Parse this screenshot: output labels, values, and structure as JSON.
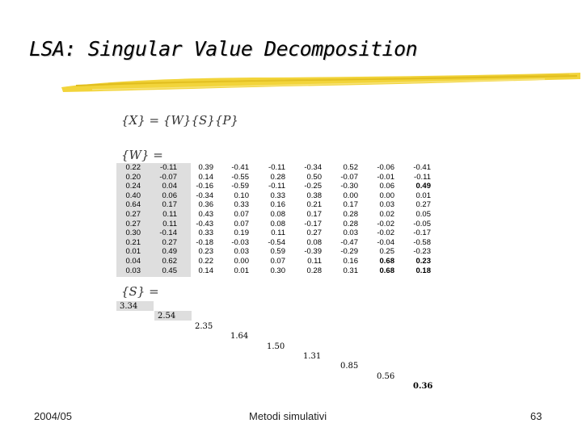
{
  "slide": {
    "title": "LSA: Singular Value Decomposition",
    "footer_left": "2004/05",
    "footer_center": "Metodi simulativi",
    "footer_right": "63",
    "accent_color": "#f2d43a"
  },
  "equation": {
    "lhs": "{X}",
    "eq": "=",
    "rhs": "{W}{S}{P}"
  },
  "w_label": "{W} =",
  "s_label": "{S} =",
  "w_matrix": [
    [
      "0.22",
      "-0.11",
      "0.39",
      "-0.41",
      "-0.11",
      "-0.34",
      "0.52",
      "-0.06",
      "-0.41"
    ],
    [
      "0.20",
      "-0.07",
      "0.14",
      "-0.55",
      "0.28",
      "0.50",
      "-0.07",
      "-0.01",
      "-0.11"
    ],
    [
      "0.24",
      "0.04",
      "-0.16",
      "-0.59",
      "-0.11",
      "-0.25",
      "-0.30",
      "0.06",
      "0.49"
    ],
    [
      "0.40",
      "0.06",
      "-0.34",
      "0.10",
      "0.33",
      "0.38",
      "0.00",
      "0.00",
      "0.01"
    ],
    [
      "0.64",
      "0.17",
      "0.36",
      "0.33",
      "0.16",
      "0.21",
      "0.17",
      "0.03",
      "0.27"
    ],
    [
      "0.27",
      "0.11",
      "0.43",
      "0.07",
      "0.08",
      "0.17",
      "0.28",
      "0.02",
      "0.05"
    ],
    [
      "0.27",
      "0.11",
      "-0.43",
      "0.07",
      "0.08",
      "-0.17",
      "0.28",
      "-0.02",
      "-0.05"
    ],
    [
      "0.30",
      "-0.14",
      "0.33",
      "0.19",
      "0.11",
      "0.27",
      "0.03",
      "-0.02",
      "-0.17"
    ],
    [
      "0.21",
      "0.27",
      "-0.18",
      "-0.03",
      "-0.54",
      "0.08",
      "-0.47",
      "-0.04",
      "-0.58"
    ],
    [
      "0.01",
      "0.49",
      "0.23",
      "0.03",
      "0.59",
      "-0.39",
      "-0.29",
      "0.25",
      "-0.23"
    ],
    [
      "0.04",
      "0.62",
      "0.22",
      "0.00",
      "0.07",
      "0.11",
      "0.16",
      "0.68",
      "0.23"
    ],
    [
      "0.03",
      "0.45",
      "0.14",
      "0.01",
      "0.30",
      "0.28",
      "0.31",
      "0.68",
      "0.18"
    ]
  ],
  "s_diagonal": [
    "3.34",
    "2.54",
    "2.35",
    "1.64",
    "1.50",
    "1.31",
    "0.85",
    "0.56",
    "0.36"
  ]
}
